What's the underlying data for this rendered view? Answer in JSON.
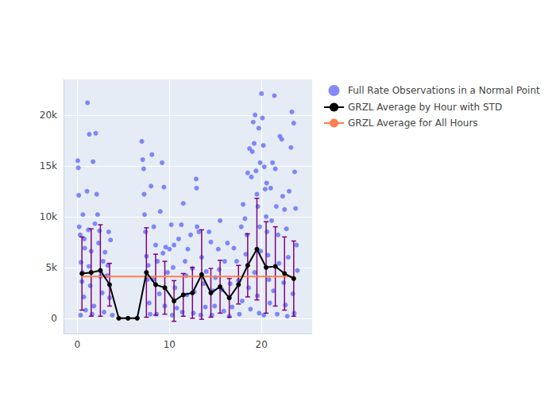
{
  "chart_data": {
    "type": "scatter",
    "xlim": [
      -1.5,
      25.5
    ],
    "xticks": [
      0,
      10,
      20
    ],
    "ylim": [
      -1500,
      23500
    ],
    "yticks": [
      0,
      {
        "value": 5000,
        "label": "5k"
      },
      {
        "value": 10000,
        "label": "10k"
      },
      {
        "value": 15000,
        "label": "15k"
      },
      {
        "value": 20000,
        "label": "20k"
      }
    ],
    "grid": true,
    "legend": "right",
    "series": [
      {
        "name": "Full Rate Observations in a Normal Point",
        "type": "scatter",
        "color": "#636efa",
        "marker": "circle",
        "x": [
          0.05,
          0.1,
          0.15,
          0.2,
          0.3,
          0.4,
          0.5,
          0.6,
          0.7,
          0.8,
          0.9,
          0.35,
          0.55,
          0.75,
          1.05,
          1.1,
          1.2,
          1.3,
          1.4,
          1.5,
          1.7,
          1.8,
          1.9,
          1.6,
          1.25,
          2.0,
          2.1,
          2.2,
          2.3,
          2.5,
          2.7,
          2.9,
          2.4,
          2.8,
          3.0,
          3.2,
          3.4,
          3.5,
          3.6,
          3.8,
          3.3,
          7.0,
          7.1,
          7.2,
          7.3,
          7.4,
          7.5,
          7.6,
          7.8,
          7.9,
          7.25,
          7.7,
          8.0,
          8.1,
          8.3,
          8.5,
          8.7,
          8.9,
          8.6,
          8.2,
          9.0,
          9.2,
          9.4,
          9.6,
          9.8,
          9.5,
          9.3,
          10.0,
          10.2,
          10.4,
          10.6,
          10.8,
          10.5,
          10.3,
          11.0,
          11.3,
          11.5,
          11.7,
          11.9,
          11.4,
          11.8,
          12.0,
          12.3,
          12.5,
          12.7,
          12.9,
          12.95,
          12.6,
          13.0,
          13.2,
          13.5,
          13.7,
          13.9,
          13.4,
          14.0,
          14.3,
          14.5,
          14.7,
          14.9,
          14.6,
          15.0,
          15.3,
          15.5,
          15.7,
          15.9,
          15.4,
          16.0,
          16.3,
          16.6,
          16.8,
          16.5,
          17.0,
          17.3,
          17.5,
          17.8,
          17.9,
          17.6,
          18.0,
          18.2,
          18.5,
          18.7,
          18.9,
          18.3,
          18.6,
          18.8,
          18.4,
          19.0,
          19.1,
          19.2,
          19.3,
          19.4,
          19.5,
          19.6,
          19.7,
          19.8,
          19.9,
          19.25,
          19.55,
          19.75,
          19.85,
          20.0,
          20.1,
          20.2,
          20.3,
          20.4,
          20.5,
          20.6,
          20.7,
          20.8,
          20.9,
          20.25,
          20.55,
          21.0,
          21.2,
          21.4,
          21.5,
          21.6,
          21.8,
          21.9,
          21.3,
          21.7,
          21.1,
          22.0,
          22.2,
          22.3,
          22.5,
          22.7,
          22.9,
          22.4,
          22.6,
          22.8,
          23.0,
          23.2,
          23.3,
          23.5,
          23.6,
          23.7,
          23.8,
          23.9,
          23.4,
          23.55
        ],
        "values": [
          15500,
          14800,
          12100,
          9000,
          8200,
          5500,
          3600,
          10200,
          2100,
          6900,
          800,
          300,
          4500,
          7800,
          12500,
          21200,
          8700,
          18100,
          3200,
          6600,
          15400,
          1200,
          9300,
          400,
          5100,
          18200,
          12200,
          10200,
          7400,
          4100,
          2500,
          600,
          8600,
          5600,
          6500,
          4200,
          8500,
          2000,
          7700,
          300,
          5200,
          17400,
          15600,
          14700,
          10200,
          8500,
          6100,
          3800,
          1500,
          400,
          12200,
          5200,
          13000,
          16100,
          9000,
          7200,
          5600,
          2400,
          400,
          3800,
          10500,
          15300,
          12900,
          7000,
          4500,
          1200,
          6400,
          6800,
          9200,
          5000,
          3000,
          1000,
          7200,
          300,
          7800,
          9200,
          11300,
          5600,
          2300,
          600,
          4200,
          6800,
          8200,
          4900,
          2600,
          13700,
          12800,
          500,
          9000,
          8500,
          6000,
          3400,
          1100,
          300,
          4600,
          8500,
          7500,
          2700,
          1200,
          300,
          4000,
          6800,
          9600,
          2800,
          700,
          4800,
          5600,
          7400,
          3400,
          1100,
          200,
          6900,
          5600,
          3700,
          9000,
          1700,
          400,
          11200,
          9800,
          14300,
          16700,
          13900,
          6300,
          3000,
          900,
          8200,
          16400,
          19300,
          17200,
          20000,
          14500,
          12200,
          11000,
          18700,
          9000,
          6600,
          4500,
          2200,
          500,
          15300,
          22100,
          19700,
          17000,
          14900,
          12700,
          10000,
          8500,
          6200,
          3800,
          1500,
          300,
          13300,
          12800,
          15300,
          21900,
          14700,
          11000,
          8200,
          5400,
          2700,
          400,
          9600,
          17900,
          17600,
          12000,
          10700,
          8800,
          6000,
          3500,
          1300,
          200,
          12500,
          16800,
          20300,
          19200,
          14400,
          10800,
          7200,
          4700,
          2400,
          500
        ]
      },
      {
        "name": "GRZL Average by Hour with STD",
        "type": "line",
        "color": "#000000",
        "marker": "circle",
        "line_style": "solid",
        "x": [
          0.5,
          1.5,
          2.5,
          3.5,
          4.5,
          5.5,
          6.5,
          7.5,
          8.5,
          9.5,
          10.5,
          11.5,
          12.5,
          13.5,
          14.5,
          15.5,
          16.5,
          17.5,
          18.5,
          19.5,
          20.5,
          21.5,
          22.5,
          23.5
        ],
        "values": [
          4400,
          4500,
          4700,
          3300,
          0,
          0,
          0,
          4500,
          3300,
          3000,
          1700,
          2300,
          2500,
          4300,
          2500,
          3100,
          2000,
          3300,
          5200,
          6800,
          5000,
          5100,
          4400,
          3900
        ],
        "std": [
          3600,
          4300,
          4500,
          2100,
          0,
          0,
          0,
          4400,
          3000,
          2600,
          2000,
          2100,
          2500,
          4400,
          2400,
          2600,
          1900,
          1900,
          3100,
          5000,
          4500,
          3900,
          3600,
          3700
        ]
      },
      {
        "name": "GRZL Average for All Hours",
        "type": "line",
        "color": "#ff7f50",
        "line_style": "solid",
        "x": [
          0.5,
          23.5
        ],
        "values": [
          4100,
          4100
        ]
      }
    ]
  }
}
